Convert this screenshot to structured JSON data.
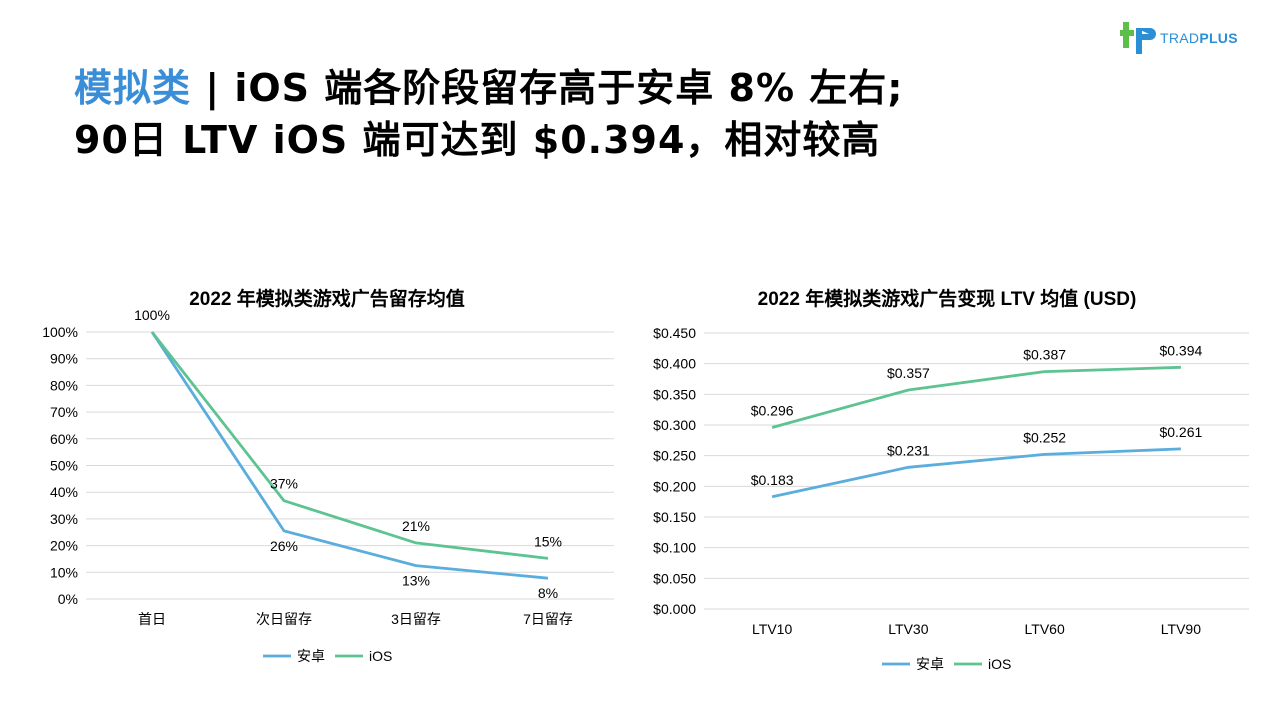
{
  "brand": {
    "name_part1": "TRAD",
    "name_part2": "PLUS",
    "colors": {
      "blue": "#2b8fd6",
      "green": "#5cbf4a"
    }
  },
  "headline": {
    "accent": "模拟类",
    "line1_rest": " | iOS 端各阶段留存高于安卓 8% 左右;",
    "line2": "90日 LTV iOS 端可达到 $0.394，相对较高",
    "accent_color": "#3a8ed8"
  },
  "chart_data": [
    {
      "type": "line",
      "title": "2022 年模拟类游戏广告留存均值",
      "categories": [
        "首日",
        "次日留存",
        "3日留存",
        "7日留存"
      ],
      "y_ticks": [
        "0%",
        "10%",
        "20%",
        "30%",
        "40%",
        "50%",
        "60%",
        "70%",
        "80%",
        "90%",
        "100%"
      ],
      "ylim": [
        0,
        100
      ],
      "grid": true,
      "legend": "bottom",
      "series": [
        {
          "name": "安卓",
          "color": "#5aaddc",
          "values": [
            100,
            25.5,
            12.5,
            7.8
          ],
          "labels": [
            "",
            "26%",
            "13%",
            "8%"
          ],
          "label_position": "below"
        },
        {
          "name": "iOS",
          "color": "#5cc391",
          "values": [
            100,
            36.8,
            21.0,
            15.2
          ],
          "labels": [
            "100%",
            "37%",
            "21%",
            "15%"
          ],
          "label_position": "above"
        }
      ]
    },
    {
      "type": "line",
      "title": "2022 年模拟类游戏广告变现 LTV 均值 (USD)",
      "categories": [
        "LTV10",
        "LTV30",
        "LTV60",
        "LTV90"
      ],
      "y_ticks": [
        "$0.000",
        "$0.050",
        "$0.100",
        "$0.150",
        "$0.200",
        "$0.250",
        "$0.300",
        "$0.350",
        "$0.400",
        "$0.450"
      ],
      "ylim": [
        0,
        0.45
      ],
      "grid": true,
      "legend": "bottom",
      "series": [
        {
          "name": "安卓",
          "color": "#5aaddc",
          "values": [
            0.183,
            0.231,
            0.252,
            0.261
          ],
          "labels": [
            "$0.183",
            "$0.231",
            "$0.252",
            "$0.261"
          ],
          "label_position": "above"
        },
        {
          "name": "iOS",
          "color": "#5cc391",
          "values": [
            0.296,
            0.357,
            0.387,
            0.394
          ],
          "labels": [
            "$0.296",
            "$0.357",
            "$0.387",
            "$0.394"
          ],
          "label_position": "above"
        }
      ]
    }
  ]
}
